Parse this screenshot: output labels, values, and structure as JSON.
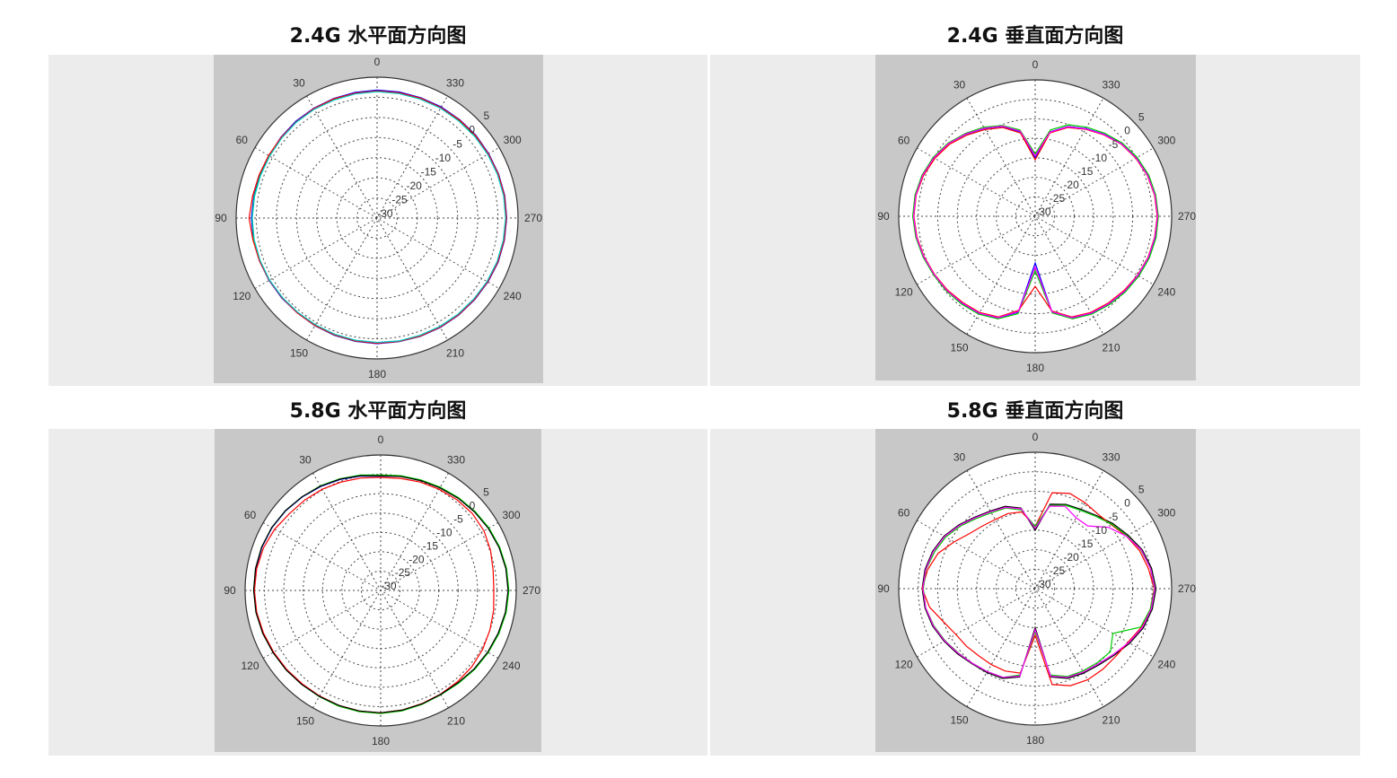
{
  "chart_data": [
    {
      "type": "polar-line",
      "title": "2.4G 水平面方向图",
      "theta_ticks": [
        "0",
        "30",
        "60",
        "90",
        "120",
        "150",
        "180",
        "210",
        "240",
        "270",
        "300",
        "330"
      ],
      "r_ticks": [
        "-30",
        "-25",
        "-20",
        "-15",
        "-10",
        "-5",
        "0",
        "5"
      ],
      "rlim": [
        -30,
        5
      ],
      "angle_direction": "counterclockwise",
      "zero_location": "top",
      "grid": true,
      "theta": [
        0,
        10,
        20,
        30,
        40,
        50,
        60,
        70,
        80,
        90,
        100,
        110,
        120,
        130,
        140,
        150,
        160,
        170,
        180,
        190,
        200,
        210,
        220,
        230,
        240,
        250,
        260,
        270,
        280,
        290,
        300,
        310,
        320,
        330,
        340,
        350
      ],
      "series": [
        {
          "color": "#0000ff",
          "values": [
            1.8,
            1.7,
            1.6,
            1.5,
            1.4,
            1.2,
            1.0,
            1.0,
            1.1,
            1.2,
            1.2,
            1.1,
            1.0,
            0.9,
            0.8,
            0.9,
            1.0,
            1.1,
            1.2,
            1.2,
            1.3,
            1.4,
            1.5,
            1.6,
            1.8,
            2.0,
            2.1,
            2.2,
            2.2,
            2.1,
            2.0,
            2.0,
            1.9,
            1.9,
            1.8,
            1.8
          ]
        },
        {
          "color": "#00cc00",
          "values": [
            1.5,
            1.4,
            1.3,
            1.3,
            1.2,
            1.0,
            0.8,
            0.9,
            1.0,
            1.0,
            1.1,
            1.0,
            0.9,
            0.7,
            0.7,
            0.8,
            0.9,
            1.0,
            1.0,
            1.1,
            1.2,
            1.2,
            1.3,
            1.4,
            1.6,
            1.8,
            1.9,
            2.0,
            2.0,
            1.9,
            1.8,
            1.8,
            1.7,
            1.6,
            1.5,
            1.5
          ]
        },
        {
          "color": "#ff0000",
          "values": [
            1.6,
            1.5,
            1.5,
            1.4,
            1.2,
            1.1,
            1.1,
            1.2,
            1.4,
            1.8,
            1.3,
            1.1,
            0.9,
            0.8,
            0.8,
            0.8,
            0.9,
            1.0,
            1.1,
            1.1,
            1.2,
            1.3,
            1.4,
            1.5,
            1.7,
            1.9,
            2.0,
            2.1,
            2.1,
            2.0,
            1.9,
            1.9,
            1.8,
            1.7,
            1.7,
            1.6
          ]
        },
        {
          "color": "#00cccc",
          "values": [
            1.4,
            1.3,
            1.2,
            1.2,
            1.1,
            0.9,
            0.8,
            0.8,
            0.9,
            1.0,
            1.0,
            0.9,
            0.8,
            0.7,
            0.6,
            0.6,
            0.7,
            0.8,
            0.9,
            1.0,
            1.0,
            1.1,
            1.2,
            1.3,
            1.5,
            1.7,
            1.8,
            1.9,
            1.9,
            1.8,
            1.7,
            1.6,
            1.5,
            1.5,
            1.4,
            1.4
          ]
        }
      ]
    },
    {
      "type": "polar-line",
      "title": "2.4G 垂直面方向图",
      "theta_ticks": [
        "0",
        "30",
        "60",
        "90",
        "120",
        "150",
        "180",
        "210",
        "240",
        "270",
        "300",
        "330"
      ],
      "r_ticks": [
        "-30",
        "-25",
        "-20",
        "-15",
        "-10",
        "-5",
        "0",
        "5"
      ],
      "rlim": [
        -30,
        5
      ],
      "angle_direction": "counterclockwise",
      "zero_location": "top",
      "grid": true,
      "theta": [
        0,
        10,
        20,
        30,
        40,
        50,
        60,
        70,
        80,
        90,
        100,
        110,
        120,
        130,
        140,
        150,
        160,
        170,
        180,
        190,
        200,
        210,
        220,
        230,
        240,
        250,
        260,
        270,
        280,
        290,
        300,
        310,
        320,
        330,
        340,
        350
      ],
      "series": [
        {
          "color": "#0000ff",
          "values": [
            -15,
            -8,
            -5.5,
            -4,
            -2.5,
            -1,
            0,
            0.8,
            1.2,
            1.3,
            1,
            0.5,
            0,
            -0.3,
            -0.8,
            -1.2,
            -2.2,
            -5,
            -18,
            -5,
            -2.2,
            -1.2,
            -0.6,
            0,
            0.5,
            1,
            1.3,
            1.5,
            1.3,
            0.8,
            0,
            -1,
            -2.5,
            -4,
            -5.5,
            -8
          ]
        },
        {
          "color": "#00cc00",
          "values": [
            -14,
            -7.5,
            -5.2,
            -3.6,
            -2.2,
            -0.8,
            0.2,
            0.9,
            1.3,
            1.4,
            1.1,
            0.6,
            0.1,
            -0.2,
            -0.6,
            -1.0,
            -2.0,
            -4.6,
            -16,
            -4.8,
            -2.0,
            -1.0,
            -0.4,
            0.2,
            0.7,
            1.2,
            1.5,
            1.6,
            1.4,
            1.0,
            0.2,
            -0.8,
            -2.2,
            -3.6,
            -5.0,
            -7.5
          ]
        },
        {
          "color": "#ff0000",
          "values": [
            -15.5,
            -8.3,
            -5.8,
            -4.3,
            -2.8,
            -1.3,
            -0.3,
            0.5,
            1.0,
            1.1,
            0.8,
            0.3,
            -0.2,
            -0.6,
            -1.1,
            -1.5,
            -2.5,
            -5.5,
            -12,
            -5.3,
            -2.5,
            -1.5,
            -0.9,
            -0.3,
            0.3,
            0.8,
            1.1,
            1.3,
            1.1,
            0.6,
            -0.2,
            -1.2,
            -2.7,
            -4.2,
            -5.8,
            -8.3
          ]
        },
        {
          "color": "#ff00ff",
          "values": [
            -14.5,
            -7.8,
            -5.4,
            -3.9,
            -2.4,
            -1.0,
            0.0,
            0.7,
            1.1,
            1.2,
            0.9,
            0.4,
            -0.1,
            -0.4,
            -0.9,
            -1.3,
            -2.3,
            -5.2,
            -17,
            -5.1,
            -2.3,
            -1.3,
            -0.7,
            -0.1,
            0.4,
            0.9,
            1.2,
            1.4,
            1.2,
            0.7,
            -0.1,
            -1.1,
            -2.6,
            -4.1,
            -5.6,
            -8.1
          ]
        }
      ]
    },
    {
      "type": "polar-line",
      "title": "5.8G 水平面方向图",
      "theta_ticks": [
        "0",
        "30",
        "60",
        "90",
        "120",
        "150",
        "180",
        "210",
        "240",
        "270",
        "300",
        "330"
      ],
      "r_ticks": [
        "-30",
        "-25",
        "-20",
        "-15",
        "-10",
        "-5",
        "0",
        "5"
      ],
      "rlim": [
        -30,
        5
      ],
      "angle_direction": "counterclockwise",
      "zero_location": "top",
      "grid": true,
      "theta": [
        0,
        10,
        20,
        30,
        40,
        50,
        60,
        70,
        80,
        90,
        100,
        110,
        120,
        130,
        140,
        150,
        160,
        170,
        180,
        190,
        200,
        210,
        220,
        230,
        240,
        250,
        260,
        270,
        280,
        290,
        300,
        310,
        320,
        330,
        340,
        350
      ],
      "series": [
        {
          "color": "#0000ff",
          "values": [
            -0.5,
            0,
            0.5,
            1.0,
            1.5,
            2.0,
            2.4,
            2.6,
            2.7,
            2.7,
            2.6,
            2.3,
            2.0,
            1.8,
            1.6,
            1.6,
            1.7,
            1.7,
            1.7,
            1.5,
            1.2,
            1.0,
            1.2,
            1.6,
            2.0,
            2.4,
            2.8,
            3.0,
            2.9,
            2.6,
            2.2,
            1.7,
            1.2,
            0.7,
            0.3,
            0
          ]
        },
        {
          "color": "#00cc00",
          "values": [
            -0.2,
            0.3,
            0.7,
            1.2,
            1.6,
            2.1,
            2.5,
            2.7,
            2.8,
            2.8,
            2.7,
            2.4,
            2.1,
            1.9,
            1.7,
            1.7,
            1.8,
            1.8,
            1.8,
            1.6,
            1.3,
            1.1,
            1.3,
            1.7,
            2.1,
            2.5,
            2.9,
            3.1,
            3.0,
            2.7,
            2.3,
            1.8,
            1.3,
            0.8,
            0.4,
            0.1
          ]
        },
        {
          "color": "#ff0000",
          "values": [
            -0.8,
            -0.5,
            -0.2,
            0.2,
            0.5,
            0.8,
            1.6,
            2.2,
            2.5,
            2.6,
            2.5,
            2.2,
            1.9,
            1.7,
            1.5,
            1.5,
            1.6,
            1.6,
            1.6,
            1.4,
            1.1,
            0.9,
            0.8,
            0.7,
            0.4,
            0.0,
            -0.4,
            -0.8,
            -0.5,
            0.2,
            0.8,
            0.9,
            0.6,
            0.2,
            -0.2,
            -0.6
          ]
        },
        {
          "color": "#000000",
          "values": [
            -0.4,
            0.1,
            0.6,
            1.1,
            1.6,
            2.1,
            2.5,
            2.7,
            2.8,
            2.8,
            2.7,
            2.4,
            2.1,
            1.9,
            1.7,
            1.6,
            1.6,
            1.6,
            1.6,
            1.4,
            1.2,
            1.0,
            1.1,
            1.5,
            1.9,
            2.3,
            2.7,
            2.9,
            2.8,
            2.5,
            2.1,
            1.6,
            1.1,
            0.6,
            0.2,
            -0.1
          ]
        }
      ]
    },
    {
      "type": "polar-line",
      "title": "5.8G 垂直面方向图",
      "theta_ticks": [
        "0",
        "30",
        "60",
        "90",
        "120",
        "150",
        "180",
        "210",
        "240",
        "270",
        "300",
        "330"
      ],
      "r_ticks": [
        "-30",
        "-25",
        "-20",
        "-15",
        "-10",
        "-5",
        "0",
        "5"
      ],
      "rlim": [
        -30,
        5
      ],
      "angle_direction": "counterclockwise",
      "zero_location": "top",
      "grid": true,
      "theta": [
        0,
        10,
        20,
        30,
        40,
        50,
        60,
        70,
        80,
        90,
        100,
        110,
        120,
        130,
        140,
        150,
        160,
        170,
        180,
        190,
        200,
        210,
        220,
        230,
        240,
        250,
        260,
        270,
        280,
        290,
        300,
        310,
        320,
        330,
        340,
        350
      ],
      "series": [
        {
          "color": "#000000",
          "values": [
            -15,
            -9,
            -7.5,
            -7,
            -6,
            -4.5,
            -3,
            -2,
            -1.3,
            -1,
            -1.3,
            -2,
            -3,
            -4,
            -4.8,
            -5.2,
            -5.5,
            -7,
            -20,
            -7,
            -5.5,
            -5,
            -4.5,
            -3.5,
            -2,
            -0.5,
            0.5,
            1,
            0.3,
            -0.8,
            -2.5,
            -4,
            -5.5,
            -6.5,
            -7,
            -8
          ]
        },
        {
          "color": "#ff0000",
          "values": [
            -14,
            -10,
            -9.5,
            -9.5,
            -9,
            -8,
            -6,
            -3.5,
            -2,
            -1,
            -2.5,
            -5,
            -6.5,
            -7,
            -7.5,
            -7.5,
            -7.5,
            -8,
            -18,
            -5,
            -3.5,
            -3,
            -3,
            -3,
            -2.5,
            -1,
            0,
            0.5,
            -0.5,
            -1.5,
            -3,
            -4.5,
            -5,
            -4.5,
            -4,
            -5
          ]
        },
        {
          "color": "#00cc00",
          "values": [
            -14,
            -9.5,
            -8,
            -7.5,
            -6.5,
            -5,
            -3.5,
            -2.5,
            -1.6,
            -1.3,
            -1.5,
            -2.3,
            -3.3,
            -4.3,
            -5,
            -5.4,
            -5.8,
            -7.5,
            -19,
            -7.5,
            -6,
            -5.6,
            -5.2,
            -4.8,
            -7,
            -1.2,
            0,
            0.6,
            0,
            -1.1,
            -2.8,
            -4.3,
            -5.8,
            -6.8,
            -7.2,
            -8.3
          ]
        },
        {
          "color": "#ff00ff",
          "values": [
            -14.5,
            -9.2,
            -7.8,
            -7.2,
            -6.2,
            -4.7,
            -3.2,
            -2.2,
            -1.5,
            -1.2,
            -1.5,
            -2.2,
            -3.2,
            -4.2,
            -5,
            -5.4,
            -5.8,
            -7.2,
            -19.5,
            -7.2,
            -5.8,
            -5.3,
            -4.8,
            -3.8,
            -2.3,
            -0.8,
            0.2,
            0.7,
            0,
            -1,
            -3,
            -5.5,
            -9,
            -9,
            -7.5,
            -8.5
          ]
        }
      ]
    }
  ]
}
